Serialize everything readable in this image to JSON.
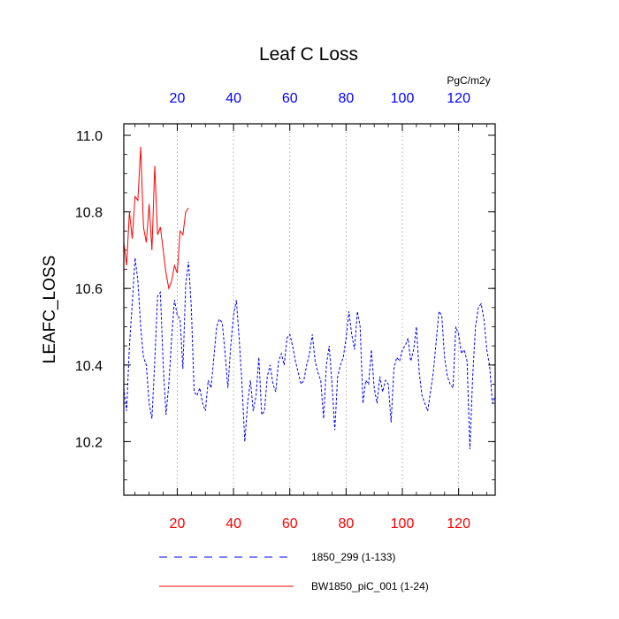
{
  "chart_data": {
    "type": "line",
    "title": "Leaf C Loss",
    "ylabel": "LEAFC_LOSS",
    "units": "PgC/m2y",
    "xlim": [
      1,
      133
    ],
    "ylim": [
      10.06,
      11.03
    ],
    "xticks": [
      20,
      40,
      60,
      80,
      100,
      120
    ],
    "yticks": [
      10.2,
      10.4,
      10.6,
      10.8,
      11.0
    ],
    "ytick_labels": [
      "10.2",
      "10.4",
      "10.6",
      "10.8",
      "11.0"
    ],
    "grid": "vertical dotted at x ticks",
    "colors": {
      "series_1850": "#0000ff",
      "series_bw1850": "#ff0000",
      "bottom_ticks": "#ff0000",
      "top_ticks": "#0000ff"
    },
    "series": [
      {
        "name": "1850_299 (1-133)",
        "style": "dashed",
        "color": "#0000ff",
        "x_start": 1,
        "values": [
          10.34,
          10.28,
          10.45,
          10.56,
          10.68,
          10.62,
          10.5,
          10.42,
          10.4,
          10.3,
          10.26,
          10.41,
          10.58,
          10.59,
          10.4,
          10.27,
          10.35,
          10.47,
          10.57,
          10.53,
          10.52,
          10.39,
          10.61,
          10.67,
          10.55,
          10.33,
          10.32,
          10.34,
          10.3,
          10.28,
          10.36,
          10.34,
          10.42,
          10.5,
          10.52,
          10.51,
          10.43,
          10.34,
          10.45,
          10.53,
          10.57,
          10.47,
          10.35,
          10.2,
          10.3,
          10.36,
          10.28,
          10.32,
          10.42,
          10.27,
          10.28,
          10.37,
          10.4,
          10.35,
          10.33,
          10.41,
          10.43,
          10.4,
          10.47,
          10.48,
          10.45,
          10.41,
          10.38,
          10.35,
          10.36,
          10.4,
          10.43,
          10.48,
          10.41,
          10.38,
          10.36,
          10.26,
          10.4,
          10.45,
          10.35,
          10.23,
          10.37,
          10.4,
          10.42,
          10.47,
          10.54,
          10.48,
          10.44,
          10.54,
          10.5,
          10.3,
          10.36,
          10.35,
          10.44,
          10.34,
          10.3,
          10.37,
          10.33,
          10.36,
          10.35,
          10.25,
          10.39,
          10.42,
          10.41,
          10.44,
          10.45,
          10.47,
          10.41,
          10.44,
          10.5,
          10.38,
          10.32,
          10.3,
          10.28,
          10.33,
          10.38,
          10.46,
          10.54,
          10.53,
          10.42,
          10.37,
          10.35,
          10.34,
          10.5,
          10.48,
          10.43,
          10.44,
          10.41,
          10.18,
          10.37,
          10.5,
          10.55,
          10.56,
          10.52,
          10.44,
          10.4,
          10.3,
          10.32
        ]
      },
      {
        "name": "BW1850_piC_001 (1-24)",
        "style": "solid",
        "color": "#ff0000",
        "x_start": 1,
        "values": [
          10.72,
          10.66,
          10.8,
          10.73,
          10.84,
          10.83,
          10.97,
          10.76,
          10.72,
          10.82,
          10.7,
          10.92,
          10.74,
          10.76,
          10.7,
          10.64,
          10.6,
          10.62,
          10.66,
          10.64,
          10.75,
          10.74,
          10.8,
          10.81
        ]
      }
    ]
  }
}
